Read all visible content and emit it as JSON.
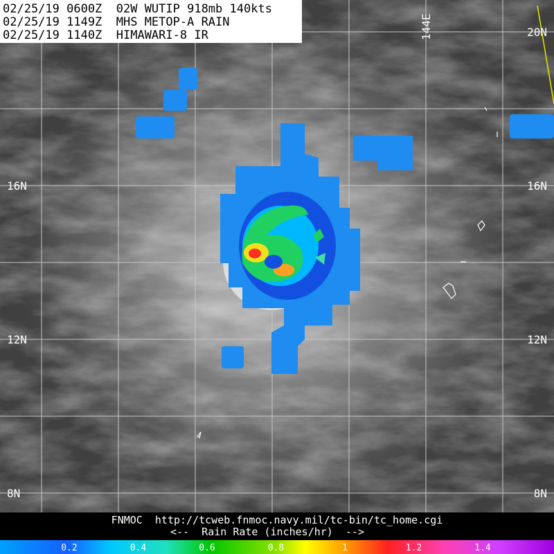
{
  "header": {
    "lines": [
      "02/25/19 0600Z  02W WUTIP 918mb 140kts",
      "02/25/19 1149Z  MHS METOP-A RAIN",
      "02/25/19 1140Z  HIMAWARI-8 IR"
    ]
  },
  "map": {
    "lat_labels": [
      "20N",
      "16N",
      "12N",
      "8N"
    ],
    "lon_label": "144E"
  },
  "footer": {
    "source": "FNMOC  http://tcweb.fnmoc.navy.mil/tc-bin/tc_home.cgi",
    "legend_label": "<--  Rain Rate (inches/hr)  -->"
  },
  "colorbar": {
    "ticks": [
      "0.2",
      "0.4",
      "0.6",
      "0.8",
      "1",
      "1.2",
      "1.4"
    ]
  }
}
